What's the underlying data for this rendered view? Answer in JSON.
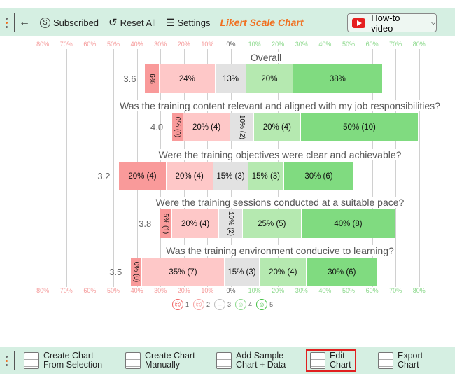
{
  "toolbar": {
    "subscribed": "Subscribed",
    "reset": "Reset All",
    "settings": "Settings",
    "title": "Likert Scale Chart",
    "howto": "How-to video"
  },
  "bottom": {
    "create_selection": [
      "Create Chart",
      "From Selection"
    ],
    "create_manual": [
      "Create Chart",
      "Manually"
    ],
    "add_sample": [
      "Add Sample",
      "Chart + Data"
    ],
    "edit": [
      "Edit",
      "Chart"
    ],
    "export": [
      "Export",
      "Chart"
    ]
  },
  "colors": {
    "neg_strong": "#f99a9a",
    "neg": "#fec8c8",
    "neutral": "#e2e2e2",
    "pos": "#b5e9b0",
    "pos_strong": "#80db80",
    "accent": "#f07020",
    "highlight": "#e02020"
  },
  "chart_data": {
    "type": "bar",
    "stacked": "diverging",
    "axis_ticks": [
      "80%",
      "70%",
      "60%",
      "50%",
      "40%",
      "30%",
      "20%",
      "10%",
      "0%",
      "10%",
      "20%",
      "30%",
      "40%",
      "50%",
      "60%",
      "70%",
      "80%"
    ],
    "xlim": [
      -80,
      80
    ],
    "grid": true,
    "legend": [
      "1",
      "2",
      "3",
      "4",
      "5"
    ],
    "legend_placement": "bottom",
    "rows": [
      {
        "question": "Overall",
        "average": "3.6",
        "labels": [
          "6%",
          "24%",
          "13%",
          "20%",
          "38%"
        ],
        "values": [
          6,
          24,
          13,
          20,
          38
        ]
      },
      {
        "question": "Was the training content relevant and aligned with my job responsibilities?",
        "average": "4.0",
        "labels": [
          "0% (0)",
          "20% (4)",
          "10% (2)",
          "20% (4)",
          "50% (10)"
        ],
        "values": [
          0,
          20,
          10,
          20,
          50
        ]
      },
      {
        "question": "Were the training objectives were clear and achievable?",
        "average": "3.2",
        "labels": [
          "20% (4)",
          "20% (4)",
          "15% (3)",
          "15% (3)",
          "30% (6)"
        ],
        "values": [
          20,
          20,
          15,
          15,
          30
        ]
      },
      {
        "question": "Were the training sessions conducted at a suitable pace?",
        "average": "3.8",
        "labels": [
          "5% (1)",
          "20% (4)",
          "10% (2)",
          "25% (5)",
          "40% (8)"
        ],
        "values": [
          5,
          20,
          10,
          25,
          40
        ]
      },
      {
        "question": "Was the training environment conducive to learning?",
        "average": "3.5",
        "labels": [
          "0% (0)",
          "35% (7)",
          "15% (3)",
          "20% (4)",
          "30% (6)"
        ],
        "values": [
          0,
          35,
          15,
          20,
          30
        ]
      }
    ]
  }
}
